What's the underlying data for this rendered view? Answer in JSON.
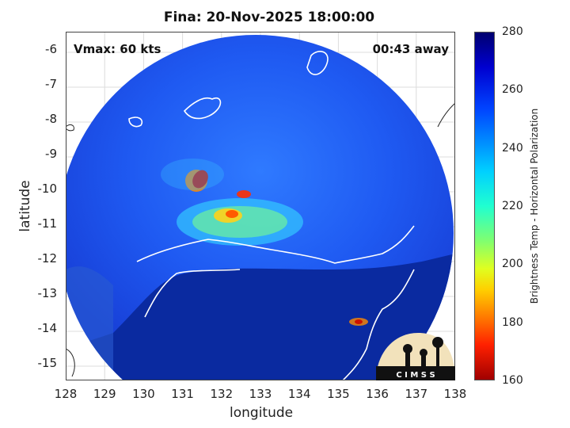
{
  "title": "Fina: 20-Nov-2025 18:00:00",
  "annotations": {
    "vmax": "Vmax: 60 kts",
    "away": "00:43 away"
  },
  "axes": {
    "xlabel": "longitude",
    "ylabel": "latitude",
    "xticks": [
      "128",
      "129",
      "130",
      "131",
      "132",
      "133",
      "134",
      "135",
      "136",
      "137",
      "138"
    ],
    "yticks": [
      "-6",
      "-7",
      "-8",
      "-9",
      "-10",
      "-11",
      "-12",
      "-13",
      "-14",
      "-15"
    ],
    "xlim": [
      128,
      138
    ],
    "ylim": [
      -15.5,
      -5.5
    ]
  },
  "colorbar": {
    "label": "Brightness Temp - Horizontal Polarization",
    "ticks": [
      "280",
      "260",
      "240",
      "220",
      "200",
      "180",
      "160"
    ],
    "range": [
      160,
      280
    ]
  },
  "logo": {
    "text": "C I M S S"
  },
  "colors": {
    "ocean": "#1a4fe0",
    "land": "#0a2a9a",
    "coast": "#ffffff",
    "storm": "#cc1100"
  }
}
